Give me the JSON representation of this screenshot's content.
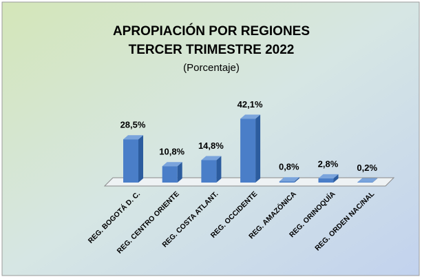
{
  "chart_data": {
    "type": "bar3d",
    "title": "APROPIACIÓN  POR REGIONES",
    "subtitle": "TERCER TRIMESTRE  2022",
    "note": "(Porcentaje)",
    "categories": [
      "REG. BOGOTÁ D. C.",
      "REG. CENTRO ORIENTE",
      "REG. COSTA ATLANT.",
      "REG. OCCIDENTE",
      "REG. AMAZÓNICA",
      "REG. ORINOQUÍA",
      "REG. ORDEN NAC/NAL"
    ],
    "values": [
      28.5,
      10.8,
      14.8,
      42.1,
      0.8,
      2.8,
      0.2
    ],
    "value_labels": [
      "28,5%",
      "10,8%",
      "14,8%",
      "42,1%",
      "0,8%",
      "2,8%",
      "0,2%"
    ],
    "color": "#4a7ec8"
  }
}
